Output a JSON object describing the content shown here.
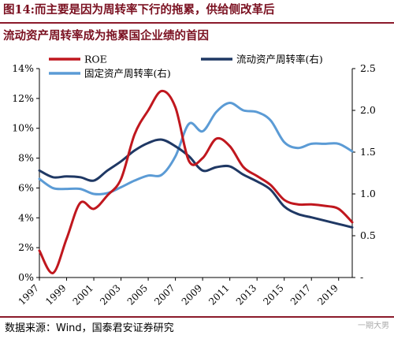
{
  "title_line1": "图14:而主要是因为周转率下行的拖累，供给侧改革后",
  "title_line2": "流动资产周转率成为拖累国企业绩的首因",
  "source": "数据来源：Wind，国泰君安证券研究",
  "watermark": "一期大男",
  "colors": {
    "roe": "#c0171e",
    "current": "#1f3864",
    "fixed": "#5b9bd5",
    "title": "#7a1020"
  },
  "chart_data": {
    "type": "line",
    "title": "",
    "xlabel": "",
    "ylabel": "",
    "x": [
      1997,
      1998,
      1999,
      2000,
      2001,
      2002,
      2003,
      2004,
      2005,
      2006,
      2007,
      2008,
      2009,
      2010,
      2011,
      2012,
      2013,
      2014,
      2015,
      2016,
      2017,
      2018,
      2019,
      2020
    ],
    "x_ticks": [
      "1997",
      "1999",
      "2001",
      "2003",
      "2005",
      "2007",
      "2009",
      "2011",
      "2013",
      "2015",
      "2017",
      "2019"
    ],
    "y_left": {
      "range": [
        0,
        14
      ],
      "ticks": [
        "0%",
        "2%",
        "4%",
        "6%",
        "8%",
        "10%",
        "12%",
        "14%"
      ]
    },
    "y_right": {
      "range": [
        0,
        2.5
      ],
      "ticks": [
        "-",
        "0.5",
        "1.0",
        "1.5",
        "2.0",
        "2.5"
      ]
    },
    "series": [
      {
        "name": "ROE",
        "axis": "left",
        "color": "#c0171e",
        "values": [
          1.8,
          0.3,
          2.6,
          5.0,
          4.6,
          5.5,
          6.6,
          9.6,
          11.2,
          12.5,
          11.4,
          7.8,
          8.0,
          9.3,
          8.8,
          7.4,
          6.8,
          6.2,
          5.2,
          4.9,
          4.9,
          4.8,
          4.6,
          3.7
        ]
      },
      {
        "name": "流动资产周转率(右)",
        "axis": "right",
        "color": "#1f3864",
        "values": [
          1.28,
          1.2,
          1.21,
          1.2,
          1.16,
          1.28,
          1.39,
          1.52,
          1.61,
          1.65,
          1.57,
          1.45,
          1.28,
          1.32,
          1.33,
          1.23,
          1.15,
          1.05,
          0.85,
          0.76,
          0.72,
          0.68,
          0.64,
          0.6
        ]
      },
      {
        "name": "固定资产周转率(右)",
        "axis": "right",
        "color": "#5b9bd5",
        "values": [
          1.18,
          1.07,
          1.06,
          1.06,
          1.0,
          1.01,
          1.08,
          1.16,
          1.22,
          1.23,
          1.45,
          1.84,
          1.75,
          1.98,
          2.09,
          2.0,
          1.98,
          1.88,
          1.62,
          1.55,
          1.6,
          1.6,
          1.6,
          1.51
        ]
      }
    ],
    "legend": [
      {
        "name": "ROE",
        "color": "#c0171e"
      },
      {
        "name": "流动资产周转率(右)",
        "color": "#1f3864"
      },
      {
        "name": "固定资产周转率(右)",
        "color": "#5b9bd5"
      }
    ],
    "legend_position": "top",
    "grid": false
  }
}
